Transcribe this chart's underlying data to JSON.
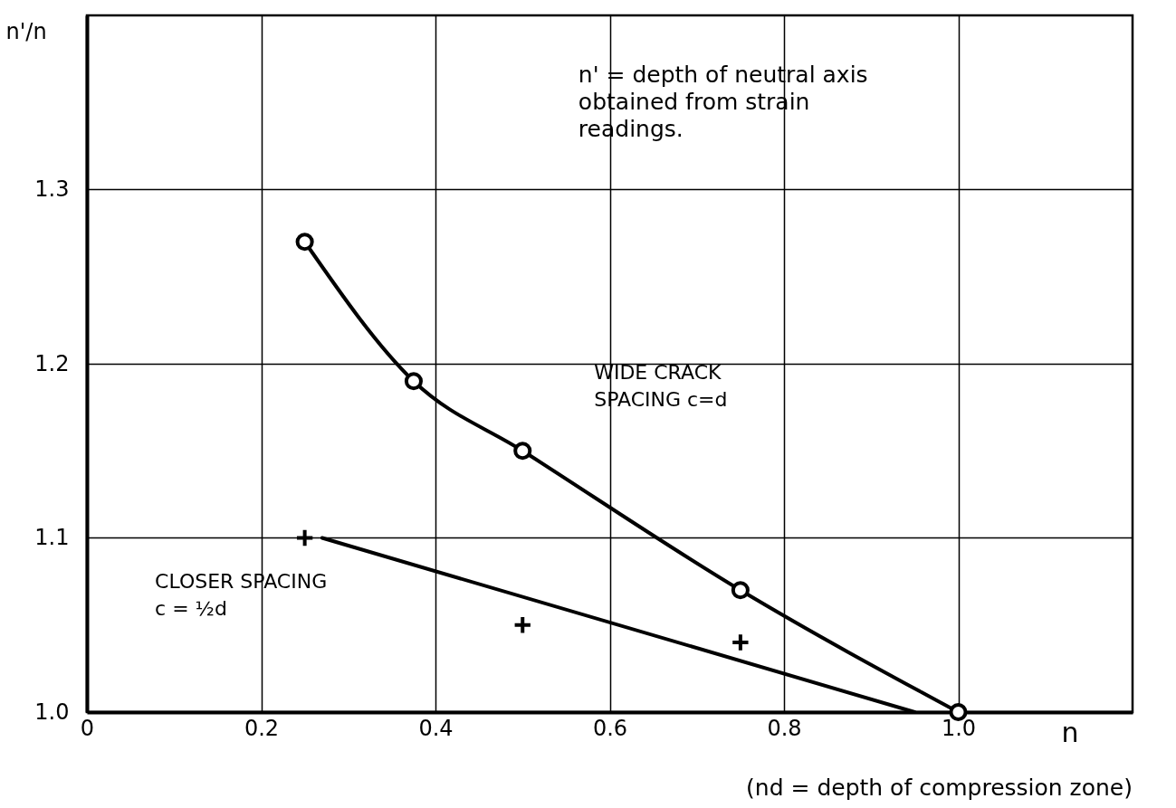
{
  "chart_data": {
    "type": "line",
    "xlabel": "n",
    "ylabel": "n'/n",
    "xlim": [
      0,
      1.2
    ],
    "ylim": [
      1.0,
      1.4
    ],
    "xticks": [
      0,
      0.2,
      0.4,
      0.6,
      0.8,
      {
        "value": 1,
        "label": "1.0"
      }
    ],
    "yticks": [
      {
        "value": 1,
        "label": "1.0"
      },
      1.1,
      1.2,
      1.3
    ],
    "grid": true,
    "series": [
      {
        "color": "#000000",
        "marker": "circle",
        "x": [
          0.25,
          0.375,
          0.5,
          0.75,
          1.0
        ],
        "values": [
          1.27,
          1.19,
          1.15,
          1.07,
          1.0
        ]
      },
      {
        "type": "scatter",
        "color": "#000000",
        "marker": "cross",
        "x": [
          0.25,
          0.5,
          0.75
        ],
        "values": [
          1.1,
          1.05,
          1.04
        ]
      },
      {
        "color": "#000000",
        "marker": "none",
        "x": [
          0.27,
          0.95
        ],
        "values": [
          1.1,
          1.0
        ]
      }
    ],
    "annotations": [
      "n' = depth of neutral axis\nobtained from strain\nreadings.",
      "(nd = depth of compression zone)",
      "WIDE CRACK\nSPACING   c=d",
      "CLOSER SPACING\nc = ½d"
    ]
  }
}
